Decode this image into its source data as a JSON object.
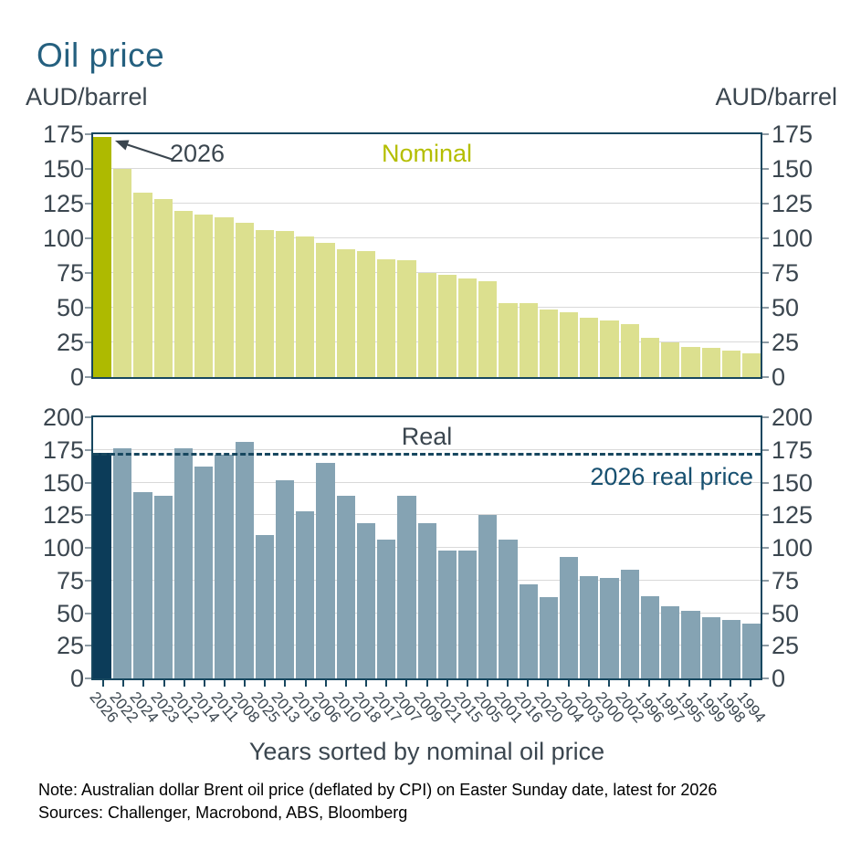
{
  "title": "Oil price",
  "unit_left": "AUD/barrel",
  "unit_right": "AUD/barrel",
  "x_axis_title": "Years sorted by nominal oil price",
  "notes": {
    "line1": "Note: Australian dollar Brent oil price (deflated by CPI) on Easter Sunday date, latest for 2026",
    "line2": "Sources: Challenger, Macrobond, ABS, Bloomberg"
  },
  "colors": {
    "title": "#25607F",
    "text": "#3B464F",
    "nominal_bar": "#DCE08F",
    "nominal_highlight": "#AEBA00",
    "nominal_label": "#B4BE00",
    "real_bar": "#85A3B3",
    "real_highlight": "#0C3C59",
    "frame": "#17475F",
    "grid": "#D9D9D9",
    "ref_line": "#17475F",
    "ref_label": "#175070",
    "note": "#000000"
  },
  "chart_data": [
    {
      "type": "bar",
      "name": "nominal",
      "title_label": "Nominal",
      "annotation": "2026",
      "categories": [
        "2026",
        "2022",
        "2024",
        "2023",
        "2012",
        "2014",
        "2011",
        "2008",
        "2025",
        "2013",
        "2019",
        "2006",
        "2010",
        "2018",
        "2017",
        "2007",
        "2009",
        "2021",
        "2015",
        "2005",
        "2001",
        "2016",
        "2020",
        "2004",
        "2003",
        "2000",
        "2002",
        "1996",
        "1997",
        "1995",
        "1999",
        "1998",
        "1994"
      ],
      "values": [
        173,
        150,
        133,
        128,
        120,
        117,
        115,
        111,
        106,
        105,
        101,
        97,
        92,
        91,
        85,
        84,
        75,
        74,
        71,
        69,
        53,
        53,
        49,
        47,
        43,
        41,
        38,
        28,
        25,
        22,
        21,
        19,
        17
      ],
      "ylim": [
        0,
        175
      ],
      "yticks": [
        0,
        25,
        50,
        75,
        100,
        125,
        150,
        175
      ],
      "grid": true,
      "legend_position": "none",
      "highlight_index": 0
    },
    {
      "type": "bar",
      "name": "real",
      "title_label": "Real",
      "categories": [
        "2026",
        "2022",
        "2024",
        "2023",
        "2012",
        "2014",
        "2011",
        "2008",
        "2025",
        "2013",
        "2019",
        "2006",
        "2010",
        "2018",
        "2017",
        "2007",
        "2009",
        "2021",
        "2015",
        "2005",
        "2001",
        "2016",
        "2020",
        "2004",
        "2003",
        "2000",
        "2002",
        "1996",
        "1997",
        "1995",
        "1999",
        "1998",
        "1994"
      ],
      "values": [
        173,
        176,
        143,
        140,
        176,
        162,
        171,
        181,
        110,
        152,
        128,
        165,
        140,
        119,
        106,
        140,
        119,
        98,
        98,
        125,
        106,
        72,
        62,
        93,
        78,
        77,
        83,
        63,
        55,
        52,
        47,
        45,
        42
      ],
      "ylim": [
        0,
        200
      ],
      "yticks": [
        0,
        25,
        50,
        75,
        100,
        125,
        150,
        175,
        200
      ],
      "grid": true,
      "legend_position": "none",
      "highlight_index": 0,
      "ref_line": {
        "value": 173,
        "label": "2026 real price",
        "style": "dashed"
      }
    }
  ]
}
